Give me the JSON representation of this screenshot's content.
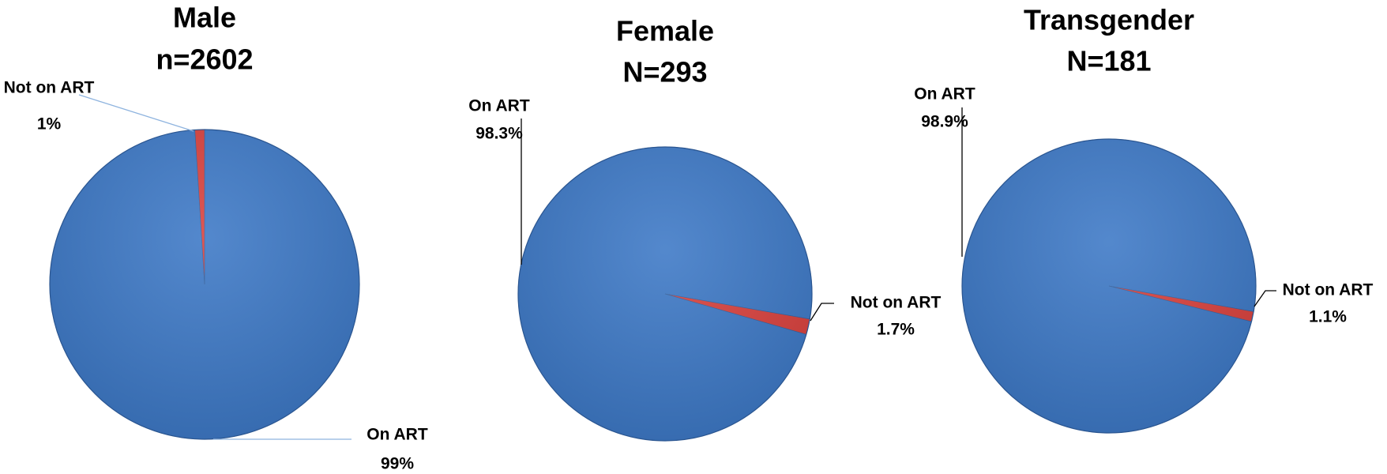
{
  "chart_data": [
    {
      "type": "pie",
      "title": "Male",
      "subtitle": "n=2602",
      "categories": [
        "On ART",
        "Not on ART"
      ],
      "values": [
        99,
        1
      ],
      "value_labels": [
        "99%",
        "1%"
      ],
      "colors": [
        "#3c78c6",
        "#d9403c"
      ]
    },
    {
      "type": "pie",
      "title": "Female",
      "subtitle": "N=293",
      "categories": [
        "On ART",
        "Not on ART"
      ],
      "values": [
        98.3,
        1.7
      ],
      "value_labels": [
        "98.3%",
        "1.7%"
      ],
      "colors": [
        "#3c78c6",
        "#d9403c"
      ]
    },
    {
      "type": "pie",
      "title": "Transgender",
      "subtitle": "N=181",
      "categories": [
        "On ART",
        "Not on ART"
      ],
      "values": [
        98.9,
        1.1
      ],
      "value_labels": [
        "98.9%",
        "1.1%"
      ],
      "colors": [
        "#3c78c6",
        "#d9403c"
      ]
    }
  ]
}
